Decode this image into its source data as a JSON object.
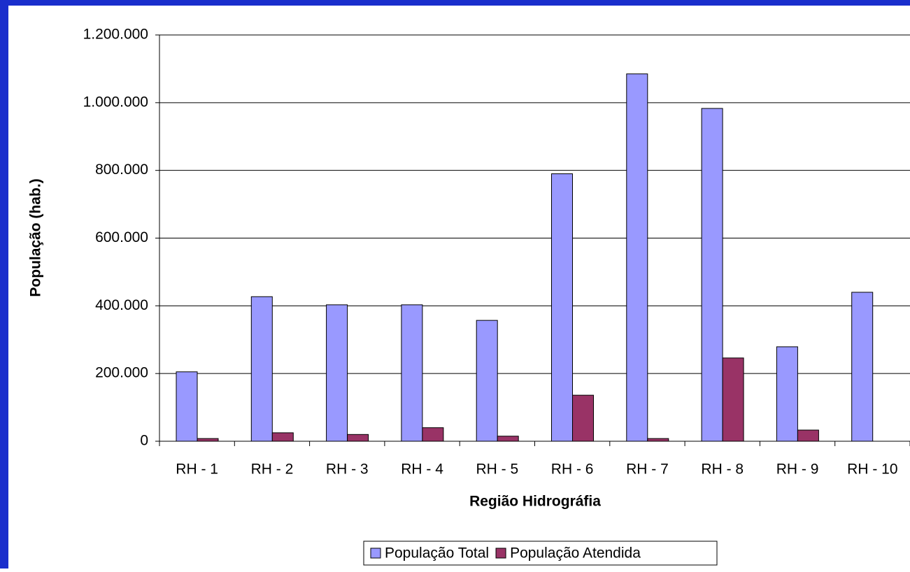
{
  "chart_data": {
    "type": "bar",
    "x_label": "Região Hidrográfia",
    "y_label": "População (hab.)",
    "categories": [
      "RH - 1",
      "RH - 2",
      "RH - 3",
      "RH - 4",
      "RH - 5",
      "RH - 6",
      "RH - 7",
      "RH - 8",
      "RH - 9",
      "RH - 10"
    ],
    "series": [
      {
        "name": "População Total",
        "color": "#9999ff",
        "values": [
          205000,
          427000,
          403000,
          403000,
          357000,
          790000,
          1085000,
          983000,
          279000,
          440000
        ]
      },
      {
        "name": "População Atendida",
        "color": "#993366",
        "values": [
          8000,
          25000,
          20000,
          40000,
          15000,
          136000,
          8000,
          246000,
          33000,
          0
        ]
      }
    ],
    "ylim": [
      0,
      1200000
    ],
    "yticks": [
      0,
      {
        "value": 200000,
        "label": "200.000"
      },
      {
        "value": 400000,
        "label": "400.000"
      },
      {
        "value": 600000,
        "label": "600.000"
      },
      {
        "value": 800000,
        "label": "800.000"
      },
      {
        "value": 1000000,
        "label": "1.000.000"
      },
      {
        "value": 1200000,
        "label": "1.200.000"
      }
    ],
    "grid": true,
    "legend": "bottom"
  }
}
